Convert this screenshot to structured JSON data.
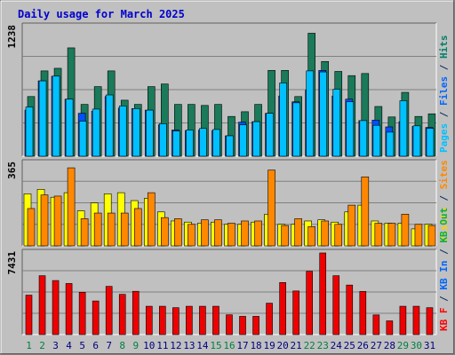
{
  "chart_data": {
    "type": "bar",
    "title": "Daily usage for March 2025",
    "categories": [
      "1",
      "2",
      "3",
      "4",
      "5",
      "6",
      "7",
      "8",
      "9",
      "10",
      "11",
      "12",
      "13",
      "14",
      "15",
      "16",
      "17",
      "18",
      "19",
      "20",
      "21",
      "22",
      "23",
      "24",
      "25",
      "26",
      "27",
      "28",
      "29",
      "30",
      "31"
    ],
    "weekend_days": [
      "1",
      "2",
      "8",
      "9",
      "15",
      "16",
      "22",
      "23",
      "29",
      "30"
    ],
    "panels": [
      {
        "id": "top",
        "ymax_label": "1238",
        "ymax": 1238,
        "legend": [
          {
            "text": "Pages",
            "color": "#00c0ff"
          },
          {
            "text": " / ",
            "color": "#0f2a60"
          },
          {
            "text": "Files",
            "color": "#0066ff"
          },
          {
            "text": " / ",
            "color": "#0f2a60"
          },
          {
            "text": "Hits",
            "color": "#00806a"
          }
        ],
        "series": [
          {
            "name": "Hits",
            "color": "#1a7a5a",
            "values": [
              570,
              815,
              840,
              1035,
              495,
              665,
              815,
              535,
              495,
              665,
              690,
              495,
              495,
              485,
              495,
              380,
              425,
              495,
              820,
              820,
              570,
              1175,
              905,
              810,
              770,
              790,
              475,
              375,
              610,
              380,
              405
            ]
          },
          {
            "name": "Files",
            "color": "#0050ff",
            "values": [
              440,
              720,
              765,
              545,
              410,
              430,
              570,
              460,
              455,
              440,
              300,
              250,
              245,
              250,
              245,
              195,
              325,
              330,
              410,
              575,
              520,
              630,
              820,
              575,
              545,
              340,
              345,
              280,
              330,
              285,
              275
            ]
          },
          {
            "name": "Pages",
            "color": "#00c0ff",
            "values": [
              470,
              720,
              765,
              545,
              335,
              450,
              585,
              480,
              455,
              440,
              310,
              240,
              250,
              265,
              255,
              195,
              300,
              330,
              410,
              700,
              510,
              815,
              805,
              640,
              520,
              340,
              295,
              230,
              530,
              290,
              265
            ]
          }
        ]
      },
      {
        "id": "mid",
        "ymax_label": "365",
        "ymax": 365,
        "legend": [
          {
            "text": "Visits",
            "color": "#ffd000"
          },
          {
            "text": " / ",
            "color": "#0f2a60"
          },
          {
            "text": "Sites",
            "color": "#ff8800"
          }
        ],
        "series": [
          {
            "name": "Visits",
            "color": "#ffff00",
            "values": [
              230,
              250,
              215,
              235,
              155,
              190,
              230,
              235,
              200,
              210,
              150,
              110,
              105,
              100,
              105,
              95,
              95,
              105,
              140,
              95,
              95,
              110,
              115,
              105,
              150,
              180,
              110,
              100,
              100,
              75,
              95
            ]
          },
          {
            "name": "Sites",
            "color": "#ff8800",
            "values": [
              165,
              225,
              220,
              345,
              120,
              145,
              145,
              145,
              165,
              235,
              125,
              120,
              95,
              115,
              115,
              100,
              110,
              110,
              335,
              90,
              120,
              85,
              110,
              95,
              180,
              305,
              100,
              100,
              140,
              95,
              90
            ]
          }
        ]
      },
      {
        "id": "bottom",
        "ymax_label": "7431",
        "ymax": 7431,
        "legend": [
          {
            "text": "KB F",
            "color": "#ff0000"
          },
          {
            "text": " / ",
            "color": "#0f2a60"
          },
          {
            "text": "KB In",
            "color": "#0066ff"
          },
          {
            "text": " / ",
            "color": "#0f2a60"
          },
          {
            "text": "KB Out",
            "color": "#00b050"
          }
        ],
        "series": [
          {
            "name": "KB F",
            "color": "#ee0000",
            "values": [
              3590,
              5360,
              4920,
              4650,
              3850,
              3060,
              4390,
              3660,
              3940,
              2580,
              2580,
              2450,
              2580,
              2580,
              2580,
              1800,
              1660,
              1660,
              2860,
              4740,
              3970,
              5760,
              7431,
              5360,
              4510,
              3930,
              1790,
              1250,
              2580,
              2580,
              2450
            ]
          }
        ]
      }
    ]
  }
}
